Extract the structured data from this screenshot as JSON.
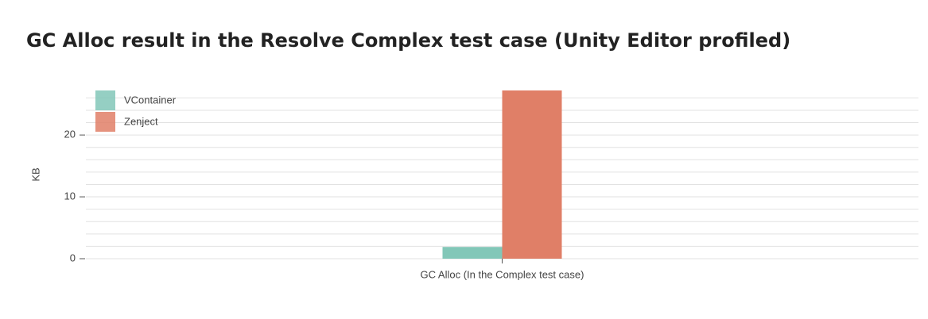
{
  "chart_data": {
    "type": "bar",
    "title": "GC Alloc result in the Resolve Complex test case (Unity Editor profiled)",
    "y_label": "KB",
    "categories": [
      "GC Alloc (In the Complex test case)"
    ],
    "series": [
      {
        "name": "VContainer",
        "color": "#82c7b8",
        "values": [
          1.9
        ]
      },
      {
        "name": "Zenject",
        "color": "#e07f67",
        "values": [
          27.2
        ]
      }
    ],
    "ylim": [
      0,
      27.2
    ],
    "yticks": [
      0,
      10,
      20
    ],
    "ygrid": [
      0,
      2,
      4,
      6,
      8,
      10,
      12,
      14,
      16,
      18,
      20,
      22,
      24,
      26
    ],
    "legend": "top-left"
  }
}
